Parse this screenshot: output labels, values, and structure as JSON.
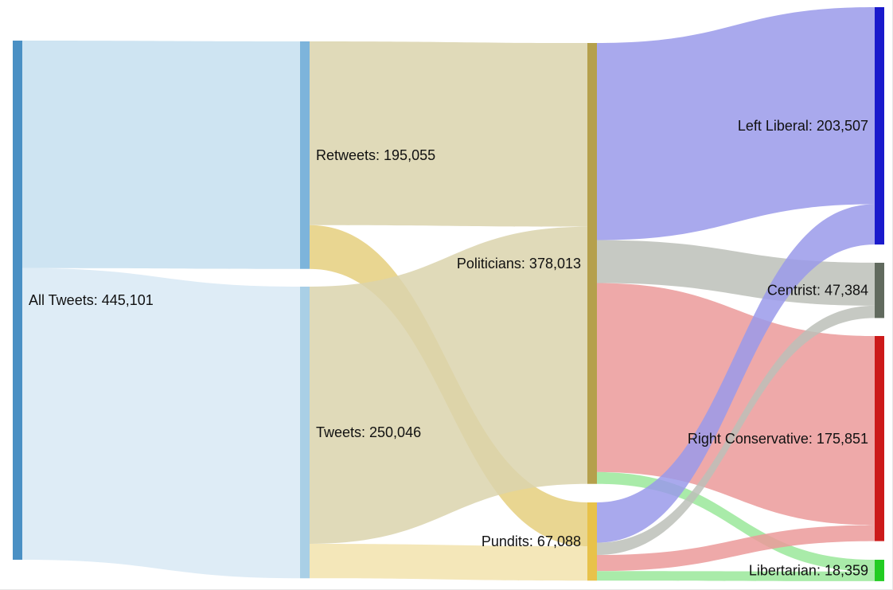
{
  "chart_data": {
    "type": "sankey",
    "title": "",
    "nodes": [
      {
        "id": "all",
        "label": "All Tweets: 445,101",
        "color": "#4a90c4"
      },
      {
        "id": "retweets",
        "label": "Retweets: 195,055",
        "color": "#7db4db"
      },
      {
        "id": "tweets",
        "label": "Tweets: 250,046",
        "color": "#a9cfe6"
      },
      {
        "id": "politicians",
        "label": "Politicians: 378,013",
        "color": "#b5a04c"
      },
      {
        "id": "pundits",
        "label": "Pundits: 67,088",
        "color": "#e8c24a"
      },
      {
        "id": "left",
        "label": "Left Liberal: 203,507",
        "color": "#1a1acc"
      },
      {
        "id": "centrist",
        "label": "Centrist: 47,384",
        "color": "#616a5e"
      },
      {
        "id": "right",
        "label": "Right Conservative: 175,851",
        "color": "#cc1a1a"
      },
      {
        "id": "libertarian",
        "label": "Libertarian: 18,359",
        "color": "#22cc22"
      }
    ],
    "links": [
      {
        "source": "all",
        "target": "retweets",
        "value": 195055,
        "color": "#c5dff0"
      },
      {
        "source": "all",
        "target": "tweets",
        "value": 250046,
        "color": "#d8e9f4"
      },
      {
        "source": "retweets",
        "target": "politicians",
        "value": 157500,
        "color": "#dbd3ad"
      },
      {
        "source": "retweets",
        "target": "pundits",
        "value": 37555,
        "color": "#e5cf7e"
      },
      {
        "source": "tweets",
        "target": "politicians",
        "value": 220513,
        "color": "#dbd3ad"
      },
      {
        "source": "tweets",
        "target": "pundits",
        "value": 29533,
        "color": "#f2e3ad"
      },
      {
        "source": "politicians",
        "target": "left",
        "value": 169000,
        "color": "#9a9aea"
      },
      {
        "source": "politicians",
        "target": "centrist",
        "value": 36800,
        "color": "#bcbfb9"
      },
      {
        "source": "politicians",
        "target": "right",
        "value": 162100,
        "color": "#eb9a9a"
      },
      {
        "source": "politicians",
        "target": "libertarian",
        "value": 10113,
        "color": "#9ae89a"
      },
      {
        "source": "pundits",
        "target": "left",
        "value": 34507,
        "color": "#9a9aea"
      },
      {
        "source": "pundits",
        "target": "centrist",
        "value": 10584,
        "color": "#bcbfb9"
      },
      {
        "source": "pundits",
        "target": "right",
        "value": 13751,
        "color": "#eb9a9a"
      },
      {
        "source": "pundits",
        "target": "libertarian",
        "value": 8246,
        "color": "#9ae89a"
      }
    ]
  }
}
